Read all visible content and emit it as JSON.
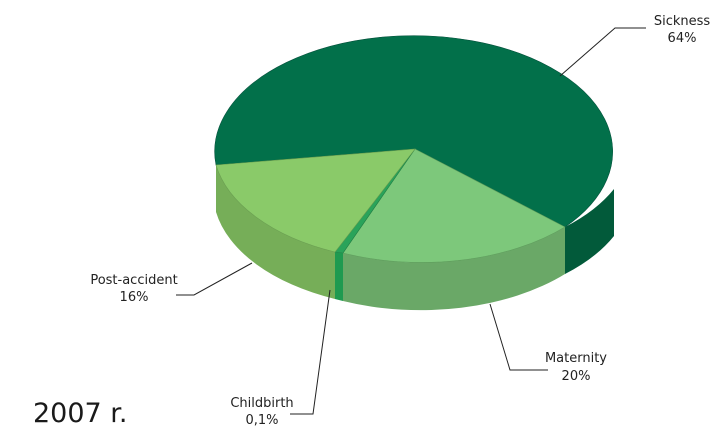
{
  "chart_data": {
    "type": "pie",
    "style": "3d",
    "caption": "2007 r.",
    "slices": [
      {
        "name": "Sickness",
        "value": 64,
        "label": "64%",
        "color": "#02704a"
      },
      {
        "name": "Maternity",
        "value": 20,
        "label": "20%",
        "color": "#7dc87b"
      },
      {
        "name": "Childbirth",
        "value": 0.1,
        "label": "0,1%",
        "color": "#2aa35a"
      },
      {
        "name": "Post-accident",
        "value": 16,
        "label": "16%",
        "color": "#8aca69"
      }
    ]
  }
}
